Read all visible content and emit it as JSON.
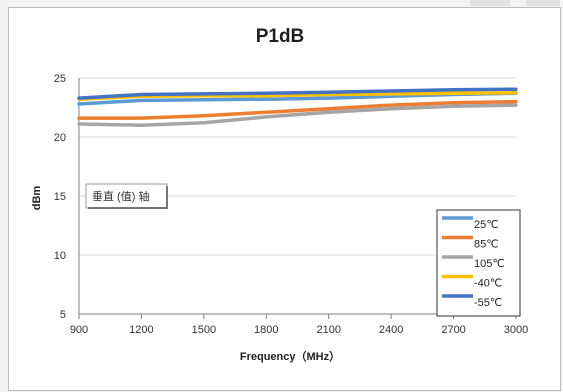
{
  "chart_data": {
    "type": "line",
    "title": "P1dB",
    "xlabel": "Frequency（MHz）",
    "ylabel": "dBm",
    "xlim": [
      900,
      3000
    ],
    "ylim": [
      5,
      25
    ],
    "x_ticks": [
      "900",
      "1200",
      "1500",
      "1800",
      "2100",
      "2400",
      "2700",
      "3000"
    ],
    "y_ticks": [
      "5",
      "10",
      "15",
      "20",
      "25"
    ],
    "grid": "horizontal",
    "legend_position": "bottom-right",
    "annotation": "垂直 (值) 轴",
    "series": [
      {
        "name": "25℃",
        "color": "#5b9bd5",
        "x": [
          900,
          1200,
          1500,
          1800,
          2100,
          2400,
          2700,
          3000
        ],
        "values": [
          22.8,
          23.1,
          23.15,
          23.2,
          23.3,
          23.45,
          23.6,
          23.7
        ]
      },
      {
        "name": "85℃",
        "color": "#ed7d31",
        "x": [
          900,
          1200,
          1500,
          1800,
          2100,
          2400,
          2700,
          3000
        ],
        "values": [
          21.6,
          21.6,
          21.8,
          22.1,
          22.4,
          22.7,
          22.9,
          23.0
        ]
      },
      {
        "name": "105℃",
        "color": "#a5a5a5",
        "x": [
          900,
          1200,
          1500,
          1800,
          2100,
          2400,
          2700,
          3000
        ],
        "values": [
          21.1,
          21.0,
          21.2,
          21.7,
          22.1,
          22.4,
          22.6,
          22.7
        ]
      },
      {
        "name": "-40℃",
        "color": "#ffc000",
        "x": [
          900,
          1200,
          1500,
          1800,
          2100,
          2400,
          2700,
          3000
        ],
        "values": [
          23.2,
          23.45,
          23.5,
          23.5,
          23.6,
          23.65,
          23.7,
          23.75
        ]
      },
      {
        "name": "-55℃",
        "color": "#4472c4",
        "x": [
          900,
          1200,
          1500,
          1800,
          2100,
          2400,
          2700,
          3000
        ],
        "values": [
          23.3,
          23.6,
          23.65,
          23.7,
          23.8,
          23.9,
          24.0,
          24.05
        ]
      }
    ]
  }
}
